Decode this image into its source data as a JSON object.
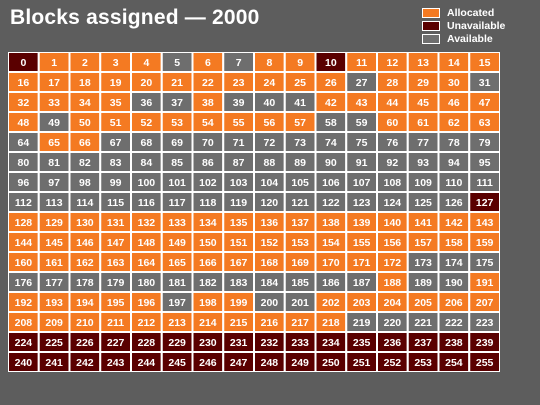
{
  "chart_data": {
    "type": "heatmap",
    "title": "Blocks assigned — 2000",
    "columns": 16,
    "rows": 16,
    "colors": {
      "allocated": "#f47a22",
      "unavailable": "#5a0000",
      "available": "#6e6e6e",
      "border": "#ffffff"
    },
    "legend": {
      "placement": "top-right",
      "items": [
        {
          "label": "Allocated",
          "status": "allocated"
        },
        {
          "label": "Unavailable",
          "status": "unavailable"
        },
        {
          "label": "Available",
          "status": "available"
        }
      ]
    },
    "allocated_blocks": [
      1,
      2,
      3,
      4,
      6,
      8,
      9,
      11,
      12,
      13,
      14,
      15,
      16,
      17,
      18,
      19,
      20,
      21,
      22,
      23,
      24,
      25,
      26,
      28,
      29,
      30,
      32,
      33,
      34,
      35,
      38,
      42,
      43,
      44,
      45,
      46,
      47,
      48,
      50,
      51,
      52,
      53,
      54,
      55,
      56,
      57,
      60,
      61,
      62,
      63,
      65,
      66,
      128,
      129,
      130,
      131,
      132,
      133,
      134,
      135,
      136,
      137,
      138,
      139,
      140,
      141,
      142,
      143,
      144,
      145,
      146,
      147,
      148,
      149,
      150,
      151,
      152,
      153,
      154,
      155,
      156,
      157,
      158,
      159,
      160,
      161,
      162,
      163,
      164,
      165,
      166,
      167,
      168,
      169,
      170,
      171,
      172,
      188,
      191,
      192,
      193,
      194,
      195,
      196,
      198,
      199,
      202,
      203,
      204,
      205,
      206,
      207,
      208,
      209,
      210,
      211,
      212,
      213,
      214,
      215,
      216,
      217,
      218
    ],
    "unavailable_blocks": [
      0,
      10,
      127,
      224,
      225,
      226,
      227,
      228,
      229,
      230,
      231,
      232,
      233,
      234,
      235,
      236,
      237,
      238,
      239,
      240,
      241,
      242,
      243,
      244,
      245,
      246,
      247,
      248,
      249,
      250,
      251,
      252,
      253,
      254,
      255
    ],
    "available_blocks": [
      5,
      7,
      27,
      31,
      36,
      37,
      39,
      40,
      41,
      49,
      58,
      59,
      64,
      67,
      68,
      69,
      70,
      71,
      72,
      73,
      74,
      75,
      76,
      77,
      78,
      79,
      80,
      81,
      82,
      83,
      84,
      85,
      86,
      87,
      88,
      89,
      90,
      91,
      92,
      93,
      94,
      95,
      96,
      97,
      98,
      99,
      100,
      101,
      102,
      103,
      104,
      105,
      106,
      107,
      108,
      109,
      110,
      111,
      112,
      113,
      114,
      115,
      116,
      117,
      118,
      119,
      120,
      121,
      122,
      123,
      124,
      125,
      126,
      173,
      174,
      175,
      176,
      177,
      178,
      179,
      180,
      181,
      182,
      183,
      184,
      185,
      186,
      187,
      189,
      190,
      197,
      200,
      201,
      219,
      220,
      221,
      222,
      223
    ]
  }
}
